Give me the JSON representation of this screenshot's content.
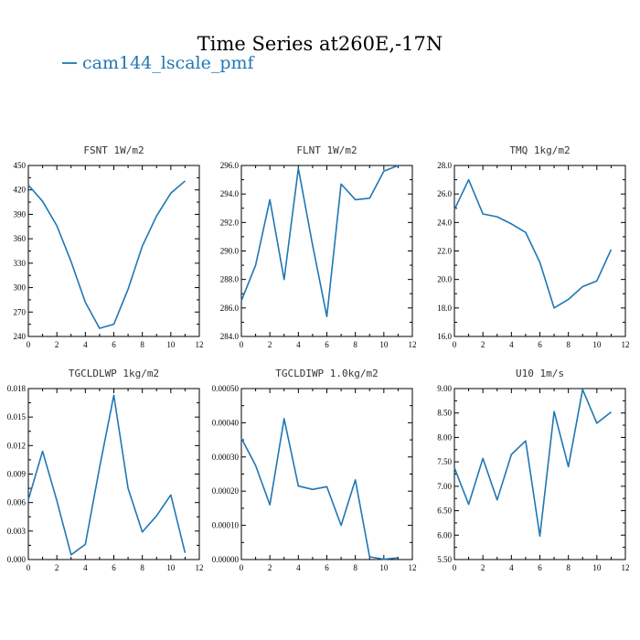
{
  "figure": {
    "title": "Time Series at260E,-17N",
    "legend_label": "cam144_lscale_pmf",
    "series_color": "#1f77b4"
  },
  "chart_data": [
    {
      "type": "line",
      "title": "FSNT  1W/m2",
      "x": [
        0,
        1,
        2,
        3,
        4,
        5,
        6,
        7,
        8,
        9,
        10,
        11
      ],
      "series": [
        {
          "name": "cam144_lscale_pmf",
          "values": [
            426,
            406,
            376,
            332,
            282,
            250,
            255,
            298,
            351,
            388,
            416,
            431
          ]
        }
      ],
      "xlim": [
        0,
        12
      ],
      "ylim": [
        240,
        450
      ],
      "xticks": [
        0,
        2,
        4,
        6,
        8,
        10,
        12
      ],
      "yticks": [
        240,
        270,
        300,
        330,
        360,
        390,
        420,
        450
      ],
      "ytick_labels": [
        "240",
        "270",
        "300",
        "330",
        "360",
        "390",
        "420",
        "450"
      ]
    },
    {
      "type": "line",
      "title": "FLNT  1W/m2",
      "x": [
        0,
        1,
        2,
        3,
        4,
        5,
        6,
        7,
        8,
        9,
        10,
        11
      ],
      "series": [
        {
          "name": "cam144_lscale_pmf",
          "values": [
            286.5,
            289.0,
            293.6,
            288.0,
            295.8,
            290.4,
            285.4,
            294.7,
            293.6,
            293.7,
            295.6,
            296.0
          ]
        }
      ],
      "xlim": [
        0,
        12
      ],
      "ylim": [
        284,
        296
      ],
      "xticks": [
        0,
        2,
        4,
        6,
        8,
        10,
        12
      ],
      "yticks": [
        284,
        286,
        288,
        290,
        292,
        294,
        296
      ],
      "ytick_labels": [
        "284.0",
        "286.0",
        "288.0",
        "290.0",
        "292.0",
        "294.0",
        "296.0"
      ]
    },
    {
      "type": "line",
      "title": "TMQ  1kg/m2",
      "x": [
        0,
        1,
        2,
        3,
        4,
        5,
        6,
        7,
        8,
        9,
        10,
        11
      ],
      "series": [
        {
          "name": "cam144_lscale_pmf",
          "values": [
            24.9,
            27.0,
            24.6,
            24.4,
            23.9,
            23.3,
            21.2,
            18.0,
            18.6,
            19.5,
            19.9,
            22.1
          ]
        }
      ],
      "xlim": [
        0,
        12
      ],
      "ylim": [
        16,
        28
      ],
      "xticks": [
        0,
        2,
        4,
        6,
        8,
        10,
        12
      ],
      "yticks": [
        16,
        18,
        20,
        22,
        24,
        26,
        28
      ],
      "ytick_labels": [
        "16.0",
        "18.0",
        "20.0",
        "22.0",
        "24.0",
        "26.0",
        "28.0"
      ]
    },
    {
      "type": "line",
      "title": "TGCLDLWP  1kg/m2",
      "x": [
        0,
        1,
        2,
        3,
        4,
        5,
        6,
        7,
        8,
        9,
        10,
        11
      ],
      "series": [
        {
          "name": "cam144_lscale_pmf",
          "values": [
            0.0063,
            0.0114,
            0.0062,
            0.0005,
            0.0016,
            0.0097,
            0.0173,
            0.0075,
            0.0029,
            0.0046,
            0.0068,
            0.0007
          ]
        }
      ],
      "xlim": [
        0,
        12
      ],
      "ylim": [
        0,
        0.018
      ],
      "xticks": [
        0,
        2,
        4,
        6,
        8,
        10,
        12
      ],
      "yticks": [
        0,
        0.003,
        0.006,
        0.009,
        0.012,
        0.015,
        0.018
      ],
      "ytick_labels": [
        "0.000",
        "0.003",
        "0.006",
        "0.009",
        "0.012",
        "0.015",
        "0.018"
      ]
    },
    {
      "type": "line",
      "title": "TGCLDIWP  1.0kg/m2",
      "x": [
        0,
        1,
        2,
        3,
        4,
        5,
        6,
        7,
        8,
        9,
        10,
        11
      ],
      "series": [
        {
          "name": "cam144_lscale_pmf",
          "values": [
            0.000355,
            0.000275,
            0.00016,
            0.000412,
            0.000215,
            0.000205,
            0.000213,
            0.0001,
            0.000233,
            8e-06,
            1e-06,
            5e-06
          ]
        }
      ],
      "xlim": [
        0,
        12
      ],
      "ylim": [
        0,
        0.0005
      ],
      "xticks": [
        0,
        2,
        4,
        6,
        8,
        10,
        12
      ],
      "yticks": [
        0,
        0.0001,
        0.0002,
        0.0003,
        0.0004,
        0.0005
      ],
      "ytick_labels": [
        "0.00000",
        "0.00010",
        "0.00020",
        "0.00030",
        "0.00040",
        "0.00050"
      ]
    },
    {
      "type": "line",
      "title": "U10  1m/s",
      "x": [
        0,
        1,
        2,
        3,
        4,
        5,
        6,
        7,
        8,
        9,
        10,
        11
      ],
      "series": [
        {
          "name": "cam144_lscale_pmf",
          "values": [
            7.38,
            6.63,
            7.57,
            6.72,
            7.65,
            7.93,
            5.98,
            8.53,
            7.4,
            8.98,
            8.29,
            8.52
          ]
        }
      ],
      "xlim": [
        0,
        12
      ],
      "ylim": [
        5.5,
        9.0
      ],
      "xticks": [
        0,
        2,
        4,
        6,
        8,
        10,
        12
      ],
      "yticks": [
        5.5,
        6.0,
        6.5,
        7.0,
        7.5,
        8.0,
        8.5,
        9.0
      ],
      "ytick_labels": [
        "5.50",
        "6.00",
        "6.50",
        "7.00",
        "7.50",
        "8.00",
        "8.50",
        "9.00"
      ]
    }
  ]
}
